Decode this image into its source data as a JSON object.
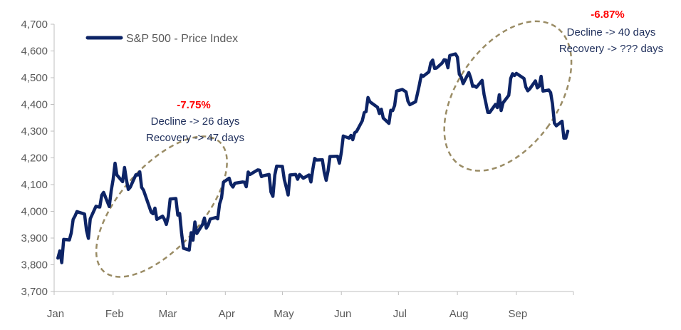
{
  "chart_data": {
    "type": "line",
    "title": "",
    "xlabel": "",
    "ylabel": "",
    "ylim": [
      3700,
      4700
    ],
    "yticks": [
      3700,
      3800,
      3900,
      4000,
      4100,
      4200,
      4300,
      4400,
      4500,
      4600,
      4700
    ],
    "ytick_labels": [
      "3,700",
      "3,800",
      "3,900",
      "4,000",
      "4,100",
      "4,200",
      "4,300",
      "4,400",
      "4,500",
      "4,600",
      "4,700"
    ],
    "xticks": [
      "Jan",
      "Feb",
      "Mar",
      "Apr",
      "May",
      "Jun",
      "Jul",
      "Aug",
      "Sep"
    ],
    "legend": {
      "position": "top-left",
      "label": "S&P 500 - Price Index"
    },
    "grid": false,
    "series": [
      {
        "name": "S&P 500 - Price Index",
        "color": "#0d2466",
        "x": [
          "2023-01-03",
          "2023-01-04",
          "2023-01-05",
          "2023-01-06",
          "2023-01-09",
          "2023-01-10",
          "2023-01-11",
          "2023-01-12",
          "2023-01-13",
          "2023-01-17",
          "2023-01-18",
          "2023-01-19",
          "2023-01-20",
          "2023-01-23",
          "2023-01-24",
          "2023-01-25",
          "2023-01-26",
          "2023-01-27",
          "2023-01-30",
          "2023-01-31",
          "2023-02-01",
          "2023-02-02",
          "2023-02-03",
          "2023-02-06",
          "2023-02-07",
          "2023-02-08",
          "2023-02-09",
          "2023-02-10",
          "2023-02-13",
          "2023-02-14",
          "2023-02-15",
          "2023-02-16",
          "2023-02-17",
          "2023-02-21",
          "2023-02-22",
          "2023-02-23",
          "2023-02-24",
          "2023-02-27",
          "2023-02-28",
          "2023-03-01",
          "2023-03-02",
          "2023-03-03",
          "2023-03-06",
          "2023-03-07",
          "2023-03-08",
          "2023-03-09",
          "2023-03-10",
          "2023-03-13",
          "2023-03-14",
          "2023-03-15",
          "2023-03-16",
          "2023-03-17",
          "2023-03-20",
          "2023-03-21",
          "2023-03-22",
          "2023-03-23",
          "2023-03-24",
          "2023-03-27",
          "2023-03-28",
          "2023-03-29",
          "2023-03-30",
          "2023-03-31",
          "2023-04-03",
          "2023-04-04",
          "2023-04-05",
          "2023-04-06",
          "2023-04-10",
          "2023-04-11",
          "2023-04-12",
          "2023-04-13",
          "2023-04-14",
          "2023-04-17",
          "2023-04-18",
          "2023-04-19",
          "2023-04-20",
          "2023-04-21",
          "2023-04-24",
          "2023-04-25",
          "2023-04-26",
          "2023-04-27",
          "2023-04-28",
          "2023-05-01",
          "2023-05-02",
          "2023-05-03",
          "2023-05-04",
          "2023-05-05",
          "2023-05-08",
          "2023-05-09",
          "2023-05-10",
          "2023-05-11",
          "2023-05-12",
          "2023-05-15",
          "2023-05-16",
          "2023-05-17",
          "2023-05-18",
          "2023-05-19",
          "2023-05-22",
          "2023-05-23",
          "2023-05-24",
          "2023-05-25",
          "2023-05-26",
          "2023-05-30",
          "2023-05-31",
          "2023-06-01",
          "2023-06-02",
          "2023-06-05",
          "2023-06-06",
          "2023-06-07",
          "2023-06-08",
          "2023-06-09",
          "2023-06-12",
          "2023-06-13",
          "2023-06-14",
          "2023-06-15",
          "2023-06-16",
          "2023-06-20",
          "2023-06-21",
          "2023-06-22",
          "2023-06-23",
          "2023-06-26",
          "2023-06-27",
          "2023-06-28",
          "2023-06-29",
          "2023-06-30",
          "2023-07-03",
          "2023-07-05",
          "2023-07-06",
          "2023-07-07",
          "2023-07-10",
          "2023-07-11",
          "2023-07-12",
          "2023-07-13",
          "2023-07-14",
          "2023-07-17",
          "2023-07-18",
          "2023-07-19",
          "2023-07-20",
          "2023-07-21",
          "2023-07-24",
          "2023-07-25",
          "2023-07-26",
          "2023-07-27",
          "2023-07-28",
          "2023-07-31",
          "2023-08-01",
          "2023-08-02",
          "2023-08-03",
          "2023-08-04",
          "2023-08-07",
          "2023-08-08",
          "2023-08-09",
          "2023-08-10",
          "2023-08-11",
          "2023-08-14",
          "2023-08-15",
          "2023-08-16",
          "2023-08-17",
          "2023-08-18",
          "2023-08-21",
          "2023-08-22",
          "2023-08-23",
          "2023-08-24",
          "2023-08-25",
          "2023-08-28",
          "2023-08-29",
          "2023-08-30",
          "2023-08-31",
          "2023-09-01",
          "2023-09-05",
          "2023-09-06",
          "2023-09-07",
          "2023-09-08",
          "2023-09-11",
          "2023-09-12",
          "2023-09-13",
          "2023-09-14",
          "2023-09-15",
          "2023-09-18",
          "2023-09-19",
          "2023-09-20",
          "2023-09-21",
          "2023-09-22",
          "2023-09-25",
          "2023-09-26",
          "2023-09-27",
          "2023-09-28"
        ],
        "values": [
          3825,
          3852,
          3808,
          3895,
          3893,
          3919,
          3970,
          3983,
          3999,
          3990,
          3929,
          3899,
          3972,
          4019,
          4017,
          4016,
          4060,
          4071,
          4018,
          4077,
          4119,
          4180,
          4136,
          4111,
          4164,
          4118,
          4082,
          4090,
          4137,
          4136,
          4148,
          4090,
          4079,
          3997,
          3991,
          4012,
          3970,
          3982,
          3970,
          3951,
          3981,
          4046,
          4048,
          3986,
          3992,
          3918,
          3862,
          3855,
          3920,
          3892,
          3960,
          3917,
          3951,
          3975,
          3937,
          3949,
          3971,
          3977,
          3972,
          4028,
          4051,
          4109,
          4124,
          4101,
          4091,
          4105,
          4110,
          4109,
          4092,
          4147,
          4138,
          4151,
          4155,
          4154,
          4130,
          4133,
          4138,
          4072,
          4056,
          4136,
          4169,
          4168,
          4119,
          4091,
          4061,
          4136,
          4138,
          4120,
          4138,
          4131,
          4124,
          4136,
          4110,
          4158,
          4198,
          4192,
          4193,
          4146,
          4116,
          4151,
          4205,
          4206,
          4180,
          4221,
          4282,
          4274,
          4284,
          4268,
          4294,
          4299,
          4339,
          4369,
          4373,
          4426,
          4410,
          4389,
          4366,
          4382,
          4349,
          4329,
          4378,
          4377,
          4396,
          4450,
          4456,
          4447,
          4412,
          4399,
          4410,
          4440,
          4473,
          4510,
          4505,
          4522,
          4555,
          4566,
          4535,
          4536,
          4555,
          4567,
          4566,
          4537,
          4583,
          4589,
          4577,
          4513,
          4502,
          4478,
          4519,
          4499,
          4468,
          4469,
          4464,
          4490,
          4438,
          4404,
          4370,
          4370,
          4400,
          4388,
          4436,
          4377,
          4406,
          4434,
          4497,
          4515,
          4508,
          4516,
          4497,
          4465,
          4451,
          4458,
          4488,
          4462,
          4468,
          4505,
          4450,
          4454,
          4444,
          4402,
          4330,
          4320,
          4337,
          4274,
          4274,
          4300
        ]
      }
    ],
    "annotations": [
      {
        "pct": "-7.75%",
        "line1": "Decline -> 26 days",
        "line2": "Recovery -> 47 days",
        "ellipse_from": "2023-02-01",
        "ellipse_to": "2023-03-24"
      },
      {
        "pct": "-6.87%",
        "line1": "Decline -> 40 days",
        "line2": "Recovery -> ??? days",
        "ellipse_from": "2023-07-27",
        "ellipse_to": "2023-09-28"
      }
    ]
  }
}
